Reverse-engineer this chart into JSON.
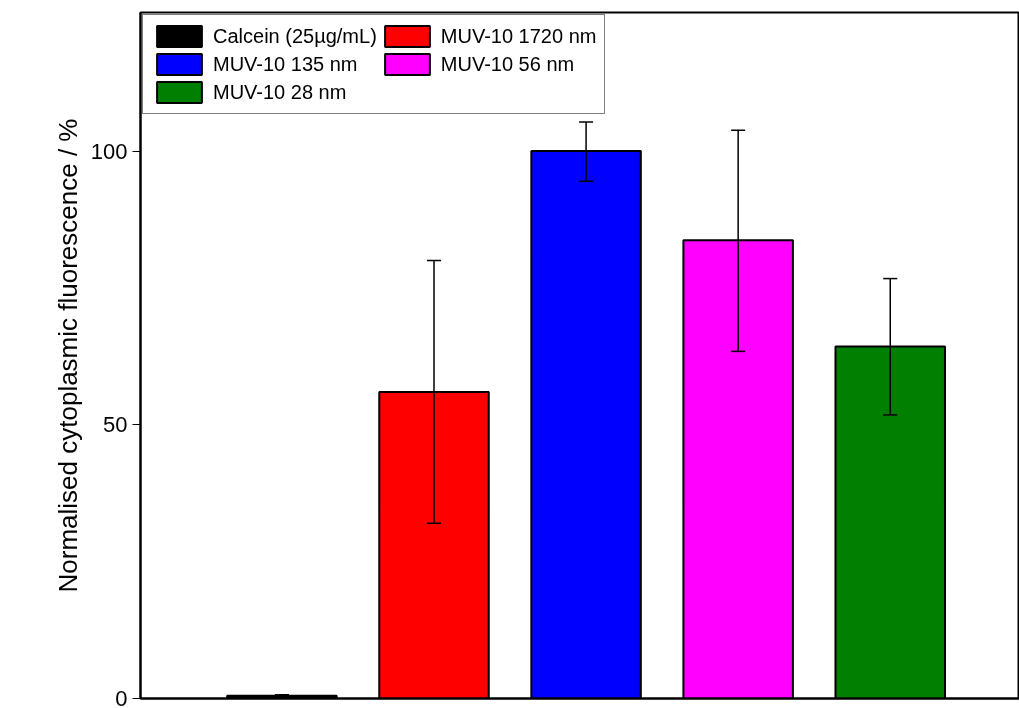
{
  "chart_data": {
    "type": "bar",
    "ylabel": "Normalised cytoplasmic fluorescence / %",
    "categories": [
      null,
      null,
      null,
      null,
      null
    ],
    "series": [
      {
        "name": "Calcein (25µg/mL)",
        "color": "#000000",
        "values": [
          0.5,
          null,
          null,
          null,
          null
        ],
        "errors": [
          0.2,
          null,
          null,
          null,
          null
        ]
      },
      {
        "name": "MUV-10 1720 nm",
        "color": "#ff0000",
        "values": [
          null,
          56,
          null,
          null,
          null
        ],
        "errors": [
          null,
          [
            32,
            80
          ],
          null,
          null,
          null
        ]
      },
      {
        "name": "MUV-10 135 nm",
        "color": "#0000ff",
        "values": [
          null,
          null,
          100,
          null,
          null
        ],
        "errors": [
          null,
          null,
          [
            94.5,
            105.3
          ],
          null,
          null
        ]
      },
      {
        "name": "MUV-10 56 nm",
        "color": "#ff00ff",
        "values": [
          null,
          null,
          null,
          83.7,
          null
        ],
        "errors": [
          null,
          null,
          null,
          [
            63.4,
            103.8
          ],
          null
        ]
      },
      {
        "name": "MUV-10 28 nm",
        "color": "#007f00",
        "values": [
          null,
          null,
          null,
          null,
          64.3
        ],
        "errors": [
          null,
          null,
          null,
          null,
          [
            51.8,
            76.7
          ]
        ]
      }
    ],
    "ylim": [
      0,
      125.3
    ],
    "yticks": [
      0,
      50,
      100
    ],
    "legend": "top left",
    "tick_labels": "y",
    "grid": false
  }
}
